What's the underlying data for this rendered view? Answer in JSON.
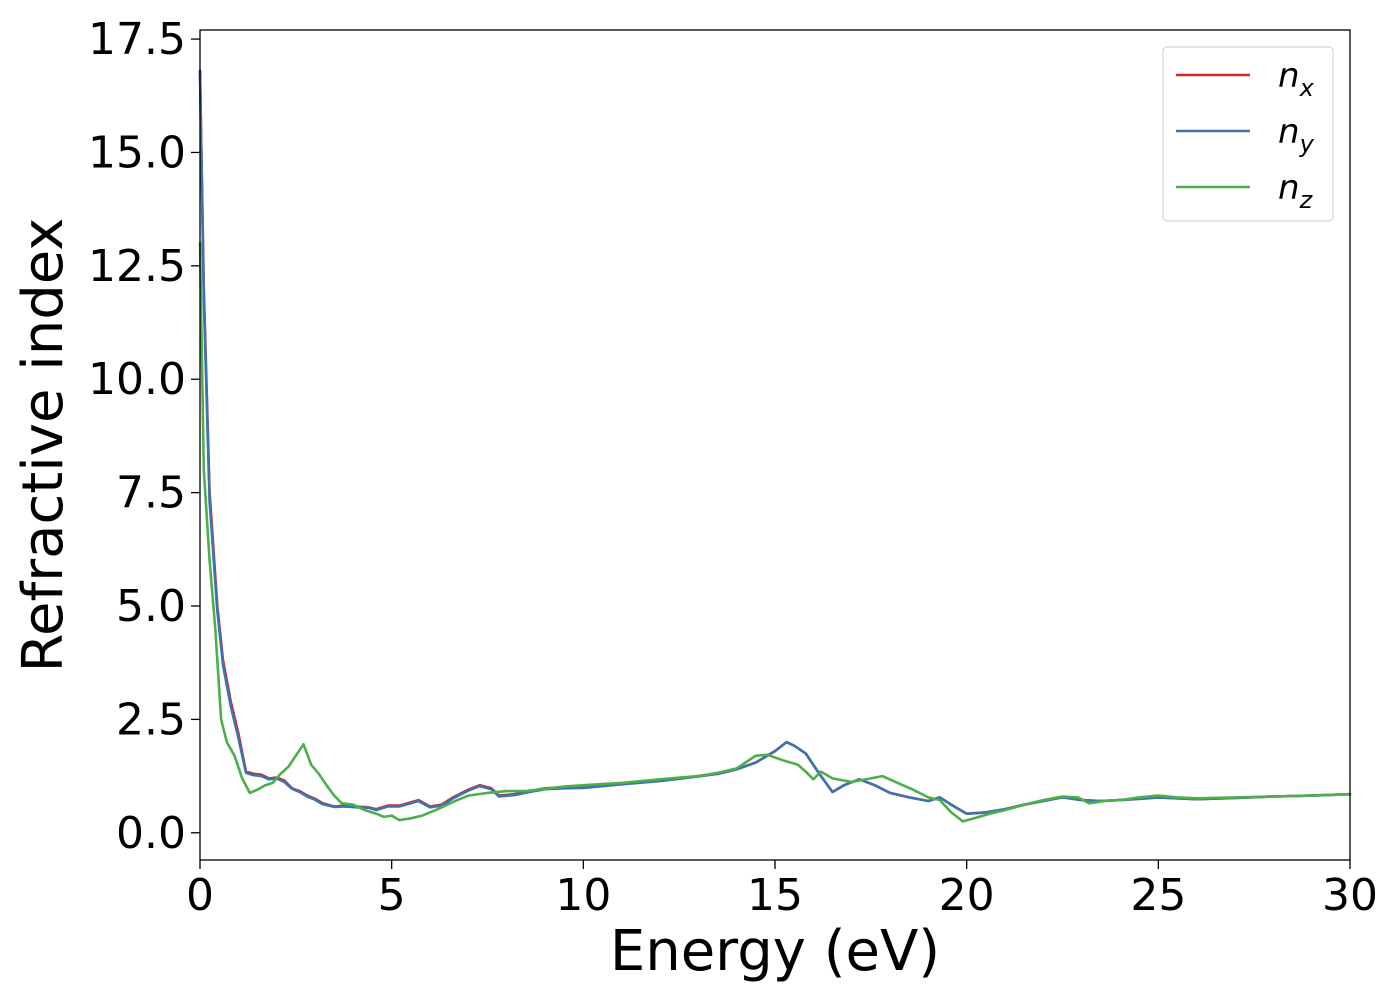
{
  "chart_data": {
    "type": "line",
    "xlabel": "Energy (eV)",
    "ylabel": "Refractive index",
    "xlim": [
      0,
      30
    ],
    "ylim": [
      -0.6,
      17.7
    ],
    "xticks": [
      0,
      5,
      10,
      15,
      20,
      25,
      30
    ],
    "xtick_labels": [
      "0",
      "5",
      "10",
      "15",
      "20",
      "25",
      "30"
    ],
    "yticks": [
      0.0,
      2.5,
      5.0,
      7.5,
      10.0,
      12.5,
      15.0,
      17.5
    ],
    "ytick_labels": [
      "0.0",
      "2.5",
      "5.0",
      "7.5",
      "10.0",
      "12.5",
      "15.0",
      "17.5"
    ],
    "grid": false,
    "legend_position": "top-right",
    "series": [
      {
        "name_base": "n",
        "name_sub": "x",
        "color": "#d62728",
        "x": [
          0.0,
          0.1,
          0.25,
          0.45,
          0.6,
          0.8,
          1.0,
          1.2,
          1.4,
          1.6,
          1.8,
          2.0,
          2.2,
          2.4,
          2.6,
          2.8,
          3.0,
          3.2,
          3.5,
          3.8,
          4.1,
          4.4,
          4.6,
          4.9,
          5.2,
          5.5,
          5.7,
          6.0,
          6.3,
          6.6,
          7.0,
          7.3,
          7.6,
          7.8,
          8.2,
          8.6,
          9.0,
          9.5,
          10.0,
          11.0,
          12.0,
          13.0,
          13.5,
          14.0,
          14.5,
          15.0,
          15.3,
          15.5,
          15.8,
          16.0,
          16.2,
          16.5,
          16.8,
          17.2,
          17.6,
          18.0,
          18.5,
          19.0,
          19.3,
          19.6,
          20.0,
          20.5,
          21.0,
          21.5,
          22.0,
          22.5,
          23.0,
          23.5,
          24.0,
          24.5,
          25.0,
          25.5,
          26.0,
          27.0,
          28.0,
          29.0,
          30.0
        ],
        "y": [
          16.8,
          12.0,
          7.5,
          5.0,
          3.8,
          2.9,
          2.2,
          1.35,
          1.3,
          1.28,
          1.2,
          1.22,
          1.15,
          0.98,
          0.92,
          0.82,
          0.75,
          0.65,
          0.58,
          0.6,
          0.58,
          0.56,
          0.52,
          0.6,
          0.6,
          0.67,
          0.72,
          0.58,
          0.62,
          0.78,
          0.95,
          1.05,
          0.98,
          0.82,
          0.85,
          0.92,
          0.98,
          1.0,
          1.0,
          1.08,
          1.15,
          1.25,
          1.3,
          1.4,
          1.55,
          1.8,
          2.0,
          1.92,
          1.75,
          1.5,
          1.25,
          0.9,
          1.05,
          1.18,
          1.05,
          0.88,
          0.78,
          0.7,
          0.78,
          0.62,
          0.42,
          0.45,
          0.52,
          0.62,
          0.7,
          0.78,
          0.72,
          0.7,
          0.72,
          0.75,
          0.78,
          0.76,
          0.74,
          0.77,
          0.8,
          0.82,
          0.85
        ]
      },
      {
        "name_base": "n",
        "name_sub": "y",
        "color": "#3b75af",
        "x": [
          0.0,
          0.1,
          0.25,
          0.45,
          0.6,
          0.8,
          1.0,
          1.2,
          1.4,
          1.6,
          1.8,
          2.0,
          2.2,
          2.4,
          2.6,
          2.8,
          3.0,
          3.2,
          3.5,
          3.8,
          4.1,
          4.4,
          4.6,
          4.9,
          5.2,
          5.5,
          5.7,
          6.0,
          6.3,
          6.6,
          7.0,
          7.3,
          7.6,
          7.8,
          8.2,
          8.6,
          9.0,
          9.5,
          10.0,
          11.0,
          12.0,
          13.0,
          13.5,
          14.0,
          14.5,
          15.0,
          15.3,
          15.5,
          15.8,
          16.0,
          16.2,
          16.5,
          16.8,
          17.2,
          17.6,
          18.0,
          18.5,
          19.0,
          19.3,
          19.6,
          20.0,
          20.5,
          21.0,
          21.5,
          22.0,
          22.5,
          23.0,
          23.5,
          24.0,
          24.5,
          25.0,
          25.5,
          26.0,
          27.0,
          28.0,
          29.0,
          30.0
        ],
        "y": [
          16.8,
          11.8,
          7.3,
          4.9,
          3.7,
          2.8,
          2.1,
          1.32,
          1.27,
          1.25,
          1.18,
          1.2,
          1.12,
          0.97,
          0.9,
          0.8,
          0.73,
          0.63,
          0.57,
          0.58,
          0.56,
          0.55,
          0.5,
          0.58,
          0.58,
          0.65,
          0.7,
          0.56,
          0.6,
          0.76,
          0.93,
          1.03,
          0.96,
          0.8,
          0.83,
          0.9,
          0.96,
          0.98,
          0.99,
          1.07,
          1.14,
          1.24,
          1.3,
          1.4,
          1.55,
          1.8,
          2.0,
          1.92,
          1.75,
          1.5,
          1.25,
          0.9,
          1.05,
          1.18,
          1.05,
          0.88,
          0.78,
          0.7,
          0.78,
          0.62,
          0.42,
          0.45,
          0.52,
          0.62,
          0.7,
          0.78,
          0.72,
          0.7,
          0.72,
          0.75,
          0.78,
          0.76,
          0.74,
          0.77,
          0.8,
          0.82,
          0.85
        ]
      },
      {
        "name_base": "n",
        "name_sub": "z",
        "color": "#4daf4a",
        "x": [
          0.0,
          0.1,
          0.25,
          0.4,
          0.55,
          0.7,
          0.9,
          1.1,
          1.3,
          1.5,
          1.7,
          1.9,
          2.1,
          2.3,
          2.5,
          2.7,
          2.9,
          3.1,
          3.3,
          3.5,
          3.7,
          4.0,
          4.3,
          4.6,
          4.8,
          5.0,
          5.2,
          5.5,
          5.8,
          6.2,
          6.6,
          7.0,
          7.5,
          8.0,
          8.5,
          9.0,
          9.5,
          10.0,
          11.0,
          12.0,
          13.0,
          13.5,
          14.0,
          14.5,
          14.8,
          15.2,
          15.6,
          15.8,
          16.0,
          16.2,
          16.5,
          17.0,
          17.5,
          17.8,
          18.2,
          18.6,
          19.0,
          19.3,
          19.6,
          19.9,
          20.2,
          20.6,
          21.0,
          21.5,
          22.0,
          22.5,
          22.9,
          23.2,
          23.6,
          24.0,
          24.5,
          25.0,
          25.5,
          26.0,
          27.0,
          28.0,
          29.0,
          30.0
        ],
        "y": [
          13.0,
          8.0,
          6.0,
          4.5,
          2.5,
          2.0,
          1.7,
          1.2,
          0.88,
          0.95,
          1.05,
          1.1,
          1.3,
          1.45,
          1.7,
          1.95,
          1.5,
          1.3,
          1.05,
          0.82,
          0.65,
          0.62,
          0.5,
          0.42,
          0.35,
          0.38,
          0.28,
          0.32,
          0.38,
          0.52,
          0.68,
          0.82,
          0.88,
          0.92,
          0.92,
          0.97,
          1.02,
          1.05,
          1.1,
          1.18,
          1.25,
          1.32,
          1.42,
          1.7,
          1.72,
          1.6,
          1.5,
          1.35,
          1.18,
          1.35,
          1.2,
          1.12,
          1.2,
          1.25,
          1.1,
          0.95,
          0.78,
          0.72,
          0.45,
          0.25,
          0.32,
          0.42,
          0.5,
          0.62,
          0.72,
          0.8,
          0.78,
          0.65,
          0.7,
          0.72,
          0.78,
          0.82,
          0.78,
          0.76,
          0.78,
          0.8,
          0.82,
          0.85
        ]
      }
    ]
  }
}
